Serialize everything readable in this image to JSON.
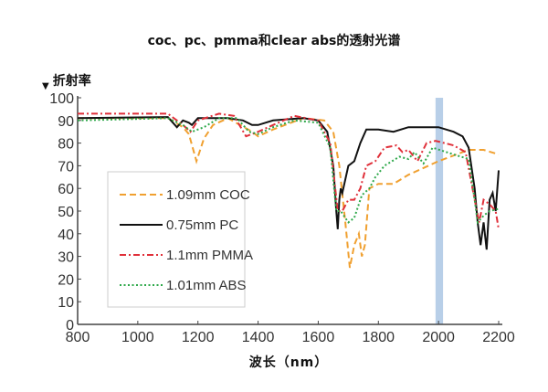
{
  "chart_data": {
    "type": "line",
    "title": "coc、pc、pmma和clear abs的透射光谱",
    "ylabel": "折射率",
    "xlabel": "波长（nm）",
    "xlim": [
      800,
      2200
    ],
    "ylim": [
      0,
      100
    ],
    "xticks": [
      800,
      1000,
      1200,
      1400,
      1600,
      1800,
      2000,
      2200
    ],
    "yticks": [
      0,
      10,
      20,
      30,
      40,
      50,
      60,
      70,
      80,
      90,
      100
    ],
    "grid": false,
    "legend": "center-left",
    "highlight_band": {
      "x": [
        1990,
        2015
      ],
      "color": "#b8cfe8"
    },
    "series": [
      {
        "name": "1.09mm COC",
        "color": "#f0a030",
        "style": "dashed",
        "x": [
          800,
          1100,
          1150,
          1170,
          1195,
          1220,
          1250,
          1300,
          1380,
          1400,
          1450,
          1550,
          1620,
          1650,
          1670,
          1690,
          1705,
          1720,
          1735,
          1745,
          1755,
          1770,
          1800,
          1850,
          1900,
          2000,
          2060,
          2100,
          2150,
          2200
        ],
        "y": [
          91,
          91,
          87,
          84,
          72,
          82,
          88,
          91,
          85,
          83,
          86,
          91,
          90,
          85,
          70,
          45,
          25,
          35,
          40,
          30,
          35,
          60,
          62,
          62,
          66,
          72,
          75,
          77,
          77,
          75
        ]
      },
      {
        "name": "0.75mm PC",
        "color": "#111111",
        "style": "solid",
        "x": [
          800,
          1100,
          1130,
          1150,
          1170,
          1180,
          1200,
          1300,
          1350,
          1380,
          1400,
          1450,
          1550,
          1600,
          1630,
          1650,
          1660,
          1665,
          1670,
          1675,
          1680,
          1700,
          1720,
          1740,
          1760,
          1800,
          1850,
          1900,
          1950,
          2000,
          2050,
          2080,
          2100,
          2120,
          2130,
          2140,
          2150,
          2160,
          2170,
          2180,
          2190,
          2200
        ],
        "y": [
          91,
          91.5,
          87,
          90,
          89,
          88,
          91,
          91,
          90,
          88,
          88,
          90,
          91,
          90,
          85,
          70,
          50,
          42,
          55,
          60,
          58,
          70,
          72,
          80,
          86,
          86,
          85,
          87,
          87,
          87,
          85,
          83,
          78,
          60,
          45,
          35,
          45,
          33,
          55,
          58,
          50,
          68
        ]
      },
      {
        "name": "1.1mm PMMA",
        "color": "#e0303a",
        "style": "dashdot",
        "x": [
          800,
          1100,
          1150,
          1175,
          1200,
          1270,
          1320,
          1360,
          1400,
          1450,
          1520,
          1600,
          1640,
          1665,
          1680,
          1700,
          1720,
          1740,
          1760,
          1790,
          1820,
          1860,
          1880,
          1900,
          1930,
          1960,
          1990,
          2050,
          2090,
          2120,
          2135,
          2150,
          2170,
          2190,
          2200
        ],
        "y": [
          93,
          93,
          88,
          85,
          90,
          93,
          92,
          83,
          85,
          88,
          92,
          90,
          80,
          50,
          50,
          55,
          55,
          60,
          70,
          72,
          78,
          79,
          76,
          77,
          72,
          80,
          81,
          79,
          76,
          55,
          45,
          55,
          53,
          50,
          42
        ]
      },
      {
        "name": "1.01mm ABS",
        "color": "#2ea84a",
        "style": "dotted",
        "x": [
          800,
          1100,
          1150,
          1180,
          1220,
          1270,
          1330,
          1370,
          1400,
          1450,
          1520,
          1600,
          1640,
          1660,
          1675,
          1700,
          1720,
          1745,
          1770,
          1790,
          1820,
          1870,
          1900,
          1920,
          1950,
          1980,
          2050,
          2100,
          2120,
          2130,
          2150,
          2170,
          2200
        ],
        "y": [
          90,
          91,
          88,
          85,
          87,
          91,
          91,
          85,
          84,
          87,
          90,
          89,
          78,
          50,
          50,
          45,
          47,
          57,
          60,
          65,
          70,
          74,
          73,
          76,
          71,
          78,
          75,
          73,
          55,
          45,
          48,
          50,
          51
        ]
      }
    ]
  }
}
